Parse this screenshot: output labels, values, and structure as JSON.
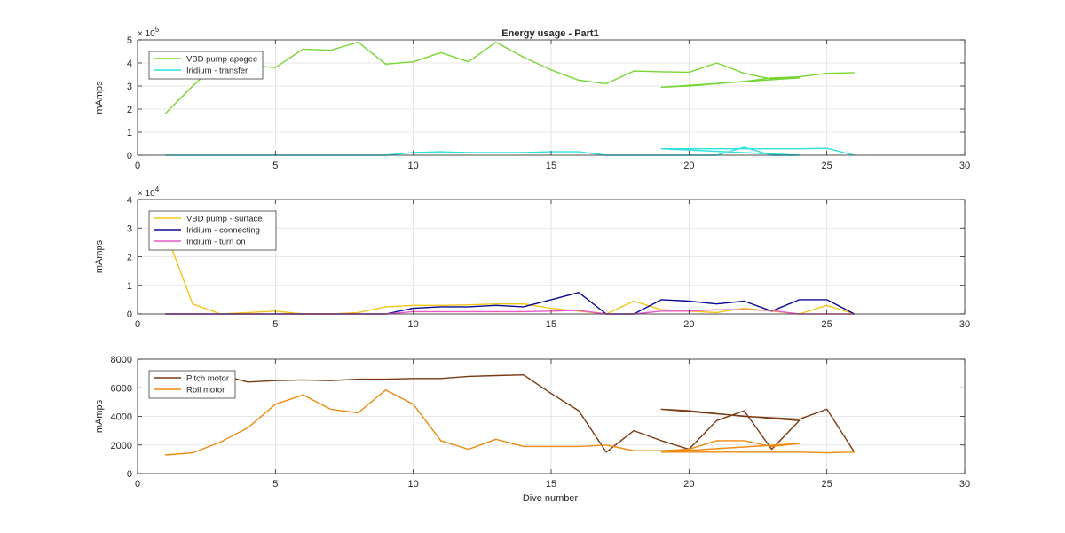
{
  "title": "Energy usage - Part1",
  "xlabel": "Dive number",
  "chart_data": [
    {
      "type": "line",
      "title": "Energy usage - Part1",
      "xlabel": "",
      "ylabel": "mAmps",
      "xlim": [
        0,
        30
      ],
      "ylim": [
        0,
        500000
      ],
      "xticks": [
        0,
        5,
        10,
        15,
        20,
        25,
        30
      ],
      "yticks": [
        0,
        1,
        2,
        3,
        4,
        5
      ],
      "ytick_labels": [
        "0",
        "1",
        "2",
        "3",
        "4",
        "5"
      ],
      "exponent_label": "× 10",
      "exponent_power": "5",
      "grid": true,
      "legend_placement": "top-left",
      "series": [
        {
          "name": "VBD pump apogee",
          "color": "#77d633",
          "x": [
            1,
            2,
            3,
            4,
            5,
            6,
            7,
            8,
            9,
            10,
            11,
            12,
            13,
            14,
            15,
            16,
            17,
            18,
            19,
            20,
            21,
            22,
            23,
            24,
            19,
            20,
            21,
            22,
            23,
            24,
            25,
            26
          ],
          "y": [
            180000,
            300000,
            410000,
            390000,
            380000,
            460000,
            455000,
            490000,
            395000,
            405000,
            445000,
            405000,
            490000,
            425000,
            370000,
            325000,
            310000,
            365000,
            362000,
            360000,
            400000,
            355000,
            330000,
            335000,
            295000,
            300000,
            310000,
            320000,
            335000,
            340000,
            355000,
            358000
          ]
        },
        {
          "name": "Iridium - transfer",
          "color": "#2ee0e0",
          "x": [
            1,
            2,
            3,
            4,
            5,
            6,
            7,
            8,
            9,
            10,
            11,
            12,
            13,
            14,
            15,
            16,
            17,
            18,
            19,
            20,
            21,
            22,
            23,
            24,
            19,
            20,
            21,
            22,
            23,
            24,
            25,
            26
          ],
          "y": [
            0,
            0,
            0,
            0,
            0,
            0,
            0,
            0,
            0,
            12000,
            15000,
            12000,
            12000,
            12000,
            15000,
            15000,
            0,
            0,
            0,
            0,
            0,
            35000,
            0,
            0,
            28000,
            28000,
            28000,
            28000,
            28000,
            28000,
            30000,
            0
          ]
        }
      ]
    },
    {
      "type": "line",
      "title": "",
      "xlabel": "",
      "ylabel": "mAmps",
      "xlim": [
        0,
        30
      ],
      "ylim": [
        0,
        40000
      ],
      "xticks": [
        0,
        5,
        10,
        15,
        20,
        25,
        30
      ],
      "yticks": [
        0,
        1,
        2,
        3,
        4
      ],
      "ytick_labels": [
        "0",
        "1",
        "2",
        "3",
        "4"
      ],
      "exponent_label": "× 10",
      "exponent_power": "4",
      "grid": true,
      "legend_placement": "top-left",
      "series": [
        {
          "name": "VBD pump - surface",
          "color": "#f2c617",
          "x": [
            1,
            2,
            3,
            4,
            5,
            6,
            7,
            8,
            9,
            10,
            11,
            12,
            13,
            14,
            15,
            16,
            17,
            18,
            19,
            20,
            21,
            22,
            23,
            24,
            25,
            26
          ],
          "y": [
            29000,
            3500,
            0,
            500,
            1000,
            0,
            0,
            500,
            2500,
            3000,
            3000,
            3200,
            3500,
            3500,
            2000,
            1000,
            0,
            4500,
            1500,
            1000,
            500,
            2000,
            1000,
            0,
            3000,
            0
          ]
        },
        {
          "name": "Iridium - connecting",
          "color": "#0a0a96",
          "x": [
            1,
            2,
            3,
            4,
            5,
            6,
            7,
            8,
            9,
            10,
            11,
            12,
            13,
            14,
            15,
            16,
            17,
            18,
            19,
            20,
            21,
            22,
            23,
            24,
            25,
            26
          ],
          "y": [
            0,
            0,
            0,
            0,
            0,
            0,
            0,
            0,
            0,
            2000,
            2500,
            2500,
            3000,
            2500,
            5000,
            7500,
            0,
            0,
            5000,
            4500,
            3500,
            4500,
            1000,
            5000,
            5000,
            0
          ]
        },
        {
          "name": "Iridium - turn on",
          "color": "#e85ac8",
          "x": [
            1,
            2,
            3,
            4,
            5,
            6,
            7,
            8,
            9,
            10,
            11,
            12,
            13,
            14,
            15,
            16,
            17,
            18,
            19,
            20,
            21,
            22,
            23,
            24,
            25,
            26
          ],
          "y": [
            0,
            0,
            0,
            0,
            0,
            0,
            0,
            0,
            0,
            800,
            800,
            800,
            800,
            800,
            1000,
            1200,
            0,
            0,
            1000,
            1000,
            1500,
            1500,
            1200,
            0,
            0,
            0
          ]
        }
      ]
    },
    {
      "type": "line",
      "title": "",
      "xlabel": "Dive number",
      "ylabel": "mAmps",
      "xlim": [
        0,
        30
      ],
      "ylim": [
        0,
        8000
      ],
      "xticks": [
        0,
        5,
        10,
        15,
        20,
        25,
        30
      ],
      "yticks": [
        0,
        2000,
        4000,
        6000,
        8000
      ],
      "ytick_labels": [
        "0",
        "2000",
        "4000",
        "6000",
        "8000"
      ],
      "exponent_label": "",
      "exponent_power": "",
      "grid": true,
      "legend_placement": "top-left",
      "series": [
        {
          "name": "Pitch motor",
          "color": "#7a3a10",
          "x": [
            1,
            2,
            3,
            4,
            5,
            6,
            7,
            8,
            9,
            10,
            11,
            12,
            13,
            14,
            15,
            16,
            17,
            18,
            19,
            20,
            21,
            22,
            23,
            24,
            19,
            20,
            21,
            22,
            23,
            24,
            25,
            26
          ],
          "y": [
            6950,
            7050,
            6900,
            6400,
            6500,
            6550,
            6500,
            6600,
            6600,
            6650,
            6650,
            6800,
            6850,
            6900,
            5600,
            4400,
            1500,
            3000,
            2300,
            1700,
            3700,
            4400,
            1700,
            3700,
            4500,
            4400,
            4200,
            4000,
            3900,
            3800,
            4500,
            1500
          ]
        },
        {
          "name": "Roll motor",
          "color": "#ee8a10",
          "x": [
            1,
            2,
            3,
            4,
            5,
            6,
            7,
            8,
            9,
            10,
            11,
            12,
            13,
            14,
            15,
            16,
            17,
            18,
            19,
            20,
            21,
            22,
            23,
            24,
            19,
            20,
            21,
            22,
            23,
            24,
            25,
            26
          ],
          "y": [
            1300,
            1450,
            2200,
            3200,
            4850,
            5500,
            4500,
            4250,
            5850,
            4850,
            2300,
            1700,
            2400,
            1900,
            1900,
            1900,
            2000,
            1600,
            1600,
            1700,
            2300,
            2300,
            1900,
            2100,
            1500,
            1500,
            1500,
            1500,
            1500,
            1500,
            1450,
            1500
          ]
        }
      ]
    }
  ]
}
